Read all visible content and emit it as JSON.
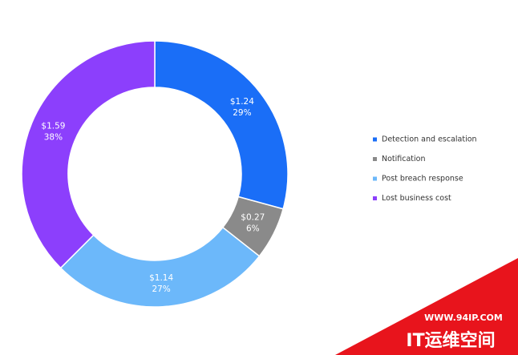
{
  "chart_data": {
    "type": "donut",
    "categories": [
      "Detection and escalation",
      "Notification",
      "Post breach response",
      "Lost business cost"
    ],
    "values": [
      1.24,
      0.27,
      1.14,
      1.59
    ],
    "value_labels": [
      "$1.24",
      "$0.27",
      "$1.14",
      "$1.59"
    ],
    "percentage_labels": [
      "29%",
      "6%",
      "27%",
      "38%"
    ],
    "colors": [
      "#1a6ef7",
      "#8a8a8a",
      "#6cb8fa",
      "#8c3ffc"
    ],
    "legend": "right"
  },
  "watermark": {
    "url": "WWW.94IP.COM",
    "name": "IT运维空间"
  }
}
